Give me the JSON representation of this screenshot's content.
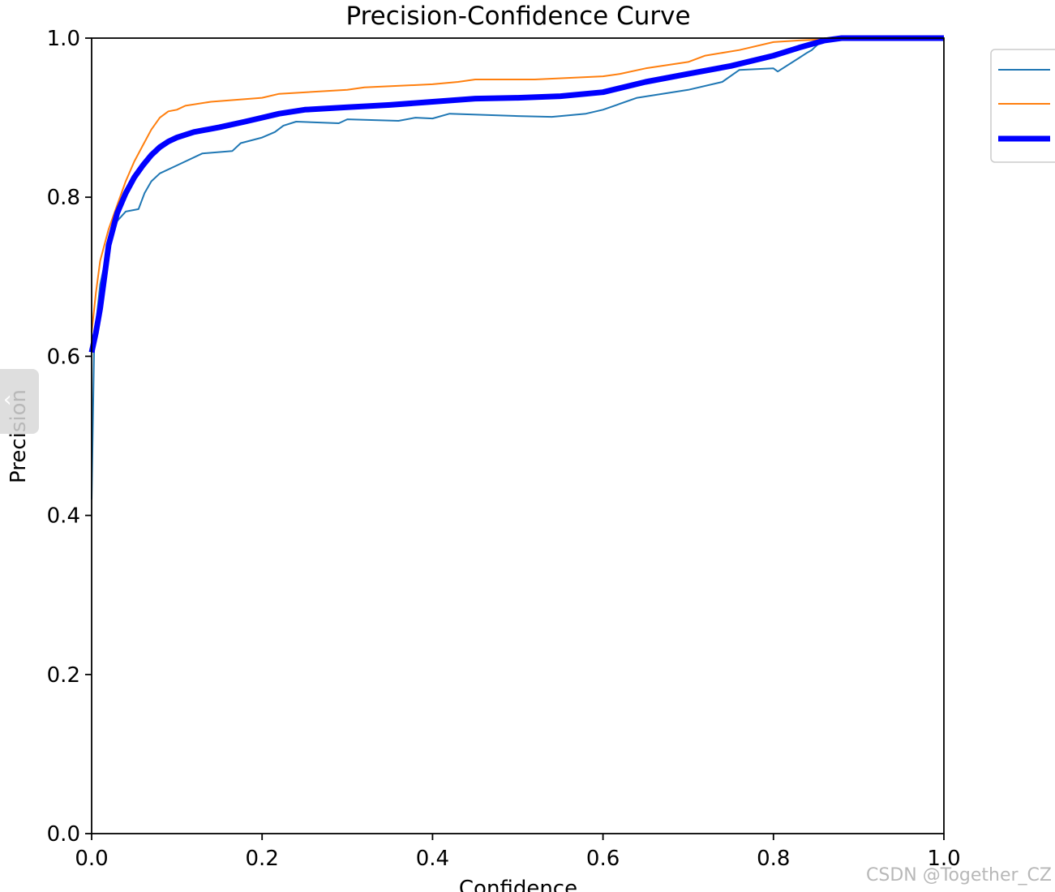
{
  "watermark": "CSDN @Together_CZ",
  "side_tab": {
    "icon": "chevron-left-icon"
  },
  "chart_data": {
    "type": "line",
    "title": "Precision-Confidence Curve",
    "xlabel": "Confidence",
    "ylabel": "Precision",
    "xlim": [
      0.0,
      1.0
    ],
    "ylim": [
      0.0,
      1.0
    ],
    "xticks": [
      "0.0",
      "0.2",
      "0.4",
      "0.6",
      "0.8",
      "1.0"
    ],
    "yticks": [
      "0.0",
      "0.2",
      "0.4",
      "0.6",
      "0.8",
      "1.0"
    ],
    "grid": false,
    "legend": {
      "position": "upper-right-outside",
      "entries": [
        "",
        "",
        ""
      ]
    },
    "series": [
      {
        "color": "#1f77b4",
        "line": "thin",
        "x": [
          0.0,
          0.003,
          0.01,
          0.02,
          0.03,
          0.04,
          0.055,
          0.062,
          0.07,
          0.08,
          0.1,
          0.13,
          0.165,
          0.175,
          0.2,
          0.215,
          0.225,
          0.24,
          0.29,
          0.3,
          0.36,
          0.38,
          0.4,
          0.42,
          0.5,
          0.54,
          0.58,
          0.6,
          0.64,
          0.7,
          0.74,
          0.76,
          0.8,
          0.805,
          0.83,
          0.84,
          0.845,
          0.86,
          1.0
        ],
        "y": [
          0.42,
          0.62,
          0.69,
          0.74,
          0.77,
          0.782,
          0.785,
          0.805,
          0.82,
          0.83,
          0.84,
          0.855,
          0.858,
          0.868,
          0.875,
          0.882,
          0.89,
          0.895,
          0.893,
          0.898,
          0.896,
          0.9,
          0.899,
          0.905,
          0.902,
          0.901,
          0.905,
          0.91,
          0.925,
          0.935,
          0.945,
          0.96,
          0.962,
          0.958,
          0.975,
          0.982,
          0.985,
          1.0,
          1.0
        ]
      },
      {
        "color": "#ff7f0e",
        "line": "thin",
        "x": [
          0.0,
          0.005,
          0.01,
          0.02,
          0.03,
          0.04,
          0.05,
          0.06,
          0.07,
          0.08,
          0.09,
          0.1,
          0.11,
          0.14,
          0.2,
          0.22,
          0.3,
          0.32,
          0.4,
          0.43,
          0.45,
          0.52,
          0.6,
          0.62,
          0.65,
          0.7,
          0.72,
          0.76,
          0.8,
          0.83,
          0.85,
          1.0
        ],
        "y": [
          0.63,
          0.68,
          0.72,
          0.76,
          0.79,
          0.82,
          0.845,
          0.865,
          0.885,
          0.9,
          0.908,
          0.91,
          0.915,
          0.92,
          0.925,
          0.93,
          0.935,
          0.938,
          0.942,
          0.945,
          0.948,
          0.948,
          0.952,
          0.955,
          0.962,
          0.97,
          0.978,
          0.985,
          0.995,
          0.997,
          0.998,
          0.999
        ]
      },
      {
        "color": "#0000ff",
        "line": "thick",
        "x": [
          0.0,
          0.005,
          0.01,
          0.015,
          0.02,
          0.03,
          0.04,
          0.05,
          0.06,
          0.07,
          0.08,
          0.09,
          0.1,
          0.12,
          0.15,
          0.18,
          0.2,
          0.22,
          0.25,
          0.3,
          0.35,
          0.4,
          0.45,
          0.5,
          0.55,
          0.6,
          0.65,
          0.7,
          0.75,
          0.8,
          0.83,
          0.86,
          0.88,
          1.0
        ],
        "y": [
          0.605,
          0.63,
          0.66,
          0.7,
          0.74,
          0.78,
          0.805,
          0.825,
          0.84,
          0.853,
          0.863,
          0.87,
          0.875,
          0.882,
          0.888,
          0.895,
          0.9,
          0.905,
          0.91,
          0.913,
          0.916,
          0.92,
          0.924,
          0.925,
          0.927,
          0.932,
          0.945,
          0.955,
          0.965,
          0.978,
          0.988,
          0.997,
          1.0,
          1.0
        ]
      }
    ]
  }
}
